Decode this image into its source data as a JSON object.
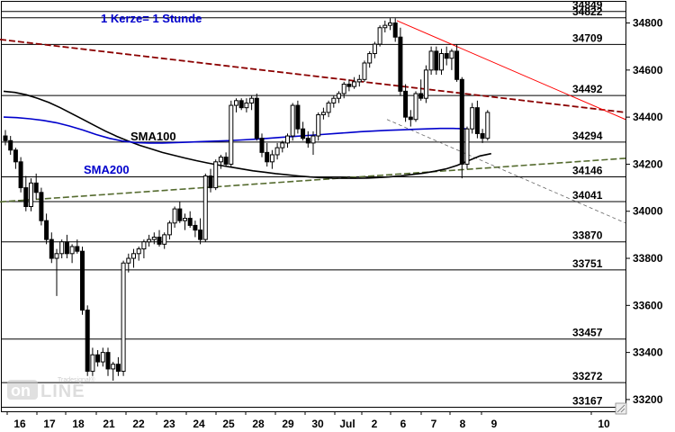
{
  "chart_data": {
    "type": "candlestick",
    "annotation": "1 Kerze= 1 Stunde",
    "watermark": "Tradesignal online",
    "y_axis": {
      "side": "right",
      "range": [
        33150,
        34890
      ],
      "ticks": [
        "34800",
        "34600",
        "34400",
        "34200",
        "34000",
        "33800",
        "33600",
        "33400",
        "33200"
      ]
    },
    "x_axis": {
      "labels": [
        "16",
        "17",
        "18",
        "21",
        "22",
        "23",
        "24",
        "25",
        "28",
        "29",
        "30",
        "Jul",
        "2",
        "6",
        "7",
        "8",
        "9",
        "10"
      ]
    },
    "horizontal_levels": [
      "34849",
      "34822",
      "34709",
      "34492",
      "34294",
      "34146",
      "34041",
      "33870",
      "33751",
      "33457",
      "33272",
      "33167"
    ],
    "indicators": [
      {
        "name": "SMA100",
        "color": "#000000"
      },
      {
        "name": "SMA200",
        "color": "#0000cc"
      }
    ],
    "colors": {
      "annotation": "#0000cc",
      "sma100": "#000000",
      "sma200": "#0000cc",
      "trend_red": "#ff0000",
      "trend_dashed": "#8b0000",
      "trend_green": "#556b2f",
      "candle": "#000000"
    },
    "candles": [
      [
        34320,
        34345,
        34280,
        34300
      ],
      [
        34300,
        34320,
        34240,
        34260
      ],
      [
        34260,
        34270,
        34180,
        34210
      ],
      [
        34210,
        34230,
        34080,
        34100
      ],
      [
        34100,
        34150,
        34000,
        34020
      ],
      [
        34020,
        34140,
        34000,
        34120
      ],
      [
        34120,
        34160,
        34050,
        34080
      ],
      [
        34080,
        34100,
        33940,
        33960
      ],
      [
        33960,
        33990,
        33860,
        33880
      ],
      [
        33880,
        33910,
        33780,
        33800
      ],
      [
        33800,
        33840,
        33640,
        33820
      ],
      [
        33820,
        33880,
        33800,
        33870
      ],
      [
        33870,
        33900,
        33800,
        33820
      ],
      [
        33820,
        33860,
        33780,
        33850
      ],
      [
        33850,
        33880,
        33820,
        33830
      ],
      [
        33830,
        33850,
        33560,
        33580
      ],
      [
        33580,
        33600,
        33300,
        33320
      ],
      [
        33320,
        33420,
        33300,
        33390
      ],
      [
        33390,
        33410,
        33340,
        33360
      ],
      [
        33360,
        33420,
        33340,
        33400
      ],
      [
        33400,
        33420,
        33300,
        33330
      ],
      [
        33330,
        33360,
        33280,
        33350
      ],
      [
        33350,
        33380,
        33300,
        33320
      ],
      [
        33320,
        33790,
        33300,
        33780
      ],
      [
        33780,
        33820,
        33740,
        33800
      ],
      [
        33800,
        33840,
        33760,
        33820
      ],
      [
        33820,
        33850,
        33790,
        33840
      ],
      [
        33840,
        33880,
        33800,
        33870
      ],
      [
        33870,
        33900,
        33850,
        33880
      ],
      [
        33880,
        33910,
        33860,
        33890
      ],
      [
        33890,
        33920,
        33850,
        33860
      ],
      [
        33860,
        33910,
        33840,
        33900
      ],
      [
        33900,
        33960,
        33880,
        33950
      ],
      [
        33950,
        34020,
        33930,
        34010
      ],
      [
        34010,
        34040,
        33950,
        33960
      ],
      [
        33960,
        33990,
        33920,
        33970
      ],
      [
        33970,
        34000,
        33930,
        33940
      ],
      [
        33940,
        33960,
        33890,
        33920
      ],
      [
        33920,
        33970,
        33860,
        33880
      ],
      [
        33880,
        34160,
        33870,
        34150
      ],
      [
        34150,
        34180,
        34080,
        34100
      ],
      [
        34100,
        34220,
        34090,
        34210
      ],
      [
        34210,
        34240,
        34180,
        34230
      ],
      [
        34230,
        34250,
        34190,
        34200
      ],
      [
        34200,
        34470,
        34190,
        34450
      ],
      [
        34450,
        34480,
        34420,
        34470
      ],
      [
        34470,
        34480,
        34430,
        34440
      ],
      [
        34440,
        34480,
        34420,
        34460
      ],
      [
        34460,
        34490,
        34430,
        34480
      ],
      [
        34480,
        34500,
        34300,
        34310
      ],
      [
        34310,
        34330,
        34230,
        34250
      ],
      [
        34250,
        34290,
        34190,
        34210
      ],
      [
        34210,
        34260,
        34180,
        34240
      ],
      [
        34240,
        34290,
        34220,
        34270
      ],
      [
        34270,
        34300,
        34250,
        34290
      ],
      [
        34290,
        34330,
        34270,
        34320
      ],
      [
        34320,
        34460,
        34300,
        34450
      ],
      [
        34450,
        34470,
        34330,
        34350
      ],
      [
        34350,
        34380,
        34300,
        34310
      ],
      [
        34310,
        34340,
        34270,
        34290
      ],
      [
        34290,
        34340,
        34240,
        34320
      ],
      [
        34320,
        34420,
        34300,
        34410
      ],
      [
        34410,
        34440,
        34390,
        34420
      ],
      [
        34420,
        34470,
        34400,
        34460
      ],
      [
        34460,
        34490,
        34440,
        34480
      ],
      [
        34480,
        34510,
        34460,
        34500
      ],
      [
        34500,
        34550,
        34480,
        34540
      ],
      [
        34540,
        34560,
        34510,
        34530
      ],
      [
        34530,
        34570,
        34520,
        34550
      ],
      [
        34550,
        34580,
        34530,
        34560
      ],
      [
        34560,
        34640,
        34550,
        34630
      ],
      [
        34630,
        34680,
        34610,
        34670
      ],
      [
        34670,
        34720,
        34650,
        34710
      ],
      [
        34710,
        34790,
        34700,
        34780
      ],
      [
        34780,
        34810,
        34760,
        34790
      ],
      [
        34790,
        34820,
        34770,
        34800
      ],
      [
        34800,
        34820,
        34720,
        34740
      ],
      [
        34740,
        34780,
        34490,
        34510
      ],
      [
        34510,
        34540,
        34380,
        34400
      ],
      [
        34400,
        34430,
        34360,
        34390
      ],
      [
        34390,
        34510,
        34380,
        34500
      ],
      [
        34500,
        34560,
        34470,
        34480
      ],
      [
        34480,
        34620,
        34460,
        34600
      ],
      [
        34600,
        34700,
        34580,
        34680
      ],
      [
        34680,
        34700,
        34580,
        34600
      ],
      [
        34600,
        34690,
        34580,
        34670
      ],
      [
        34670,
        34700,
        34620,
        34650
      ],
      [
        34650,
        34690,
        34600,
        34680
      ],
      [
        34680,
        34710,
        34550,
        34560
      ],
      [
        34560,
        34570,
        34140,
        34200
      ],
      [
        34200,
        34360,
        34180,
        34350
      ],
      [
        34350,
        34460,
        34330,
        34440
      ],
      [
        34440,
        34470,
        34310,
        34330
      ],
      [
        34330,
        34350,
        34290,
        34310
      ],
      [
        34310,
        34430,
        34300,
        34420
      ]
    ]
  }
}
